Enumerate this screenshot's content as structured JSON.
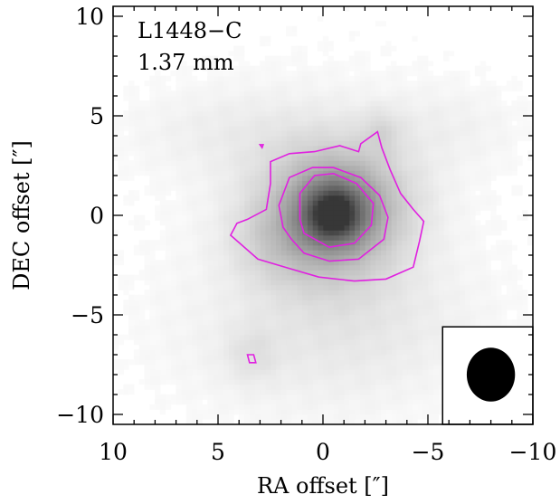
{
  "chart_data": {
    "type": "heatmap",
    "annotations": {
      "source": "L1448−C",
      "wavelength": "1.37 mm"
    },
    "xlabel": "RA offset [″]",
    "ylabel": "DEC offset [″]",
    "xlim": [
      10,
      -10
    ],
    "ylim": [
      -10.5,
      10.5
    ],
    "x_ticks": [
      10,
      5,
      0,
      -5,
      -10
    ],
    "x_tick_labels": [
      "10",
      "5",
      "0",
      "−5",
      "−10"
    ],
    "y_ticks": [
      10,
      5,
      0,
      -5,
      -10
    ],
    "y_tick_labels": [
      "10",
      "5",
      "0",
      "−5",
      "−10"
    ],
    "grid": false,
    "colormap": "grayscale (white = low, dark gray = high)",
    "source_peak": {
      "x": -0.4,
      "y": 0.1
    },
    "contour_color": "#e020e0",
    "contours": [
      {
        "level": 1,
        "points": [
          [
            3.1,
            -2.2
          ],
          [
            1.5,
            -2.7
          ],
          [
            0.2,
            -3.1
          ],
          [
            -1.5,
            -3.3
          ],
          [
            -3.0,
            -3.2
          ],
          [
            -4.3,
            -2.6
          ],
          [
            -4.6,
            -1.3
          ],
          [
            -4.8,
            -0.3
          ],
          [
            -4.3,
            0.3
          ],
          [
            -3.7,
            1.1
          ],
          [
            -3.2,
            2.3
          ],
          [
            -2.8,
            3.4
          ],
          [
            -2.6,
            4.2
          ],
          [
            -1.8,
            3.6
          ],
          [
            -1.7,
            3.2
          ],
          [
            -0.8,
            3.5
          ],
          [
            0.4,
            3.2
          ],
          [
            1.6,
            3.1
          ],
          [
            2.5,
            2.7
          ],
          [
            2.5,
            1.6
          ],
          [
            2.7,
            0.3
          ],
          [
            3.6,
            -0.2
          ],
          [
            4.1,
            -0.4
          ],
          [
            4.4,
            -1.0
          ],
          [
            3.1,
            -2.2
          ]
        ]
      },
      {
        "level": 2,
        "points": [
          [
            1.5,
            -1.2
          ],
          [
            0.9,
            -1.9
          ],
          [
            -0.3,
            -2.3
          ],
          [
            -1.7,
            -2.2
          ],
          [
            -2.9,
            -1.2
          ],
          [
            -3.1,
            -0.1
          ],
          [
            -2.7,
            1.0
          ],
          [
            -1.8,
            1.9
          ],
          [
            -0.5,
            2.4
          ],
          [
            0.5,
            2.4
          ],
          [
            1.6,
            1.9
          ],
          [
            2.1,
            0.5
          ],
          [
            1.9,
            -0.6
          ],
          [
            1.5,
            -1.2
          ]
        ]
      },
      {
        "level": 3,
        "points": [
          [
            0.9,
            -0.9
          ],
          [
            -0.3,
            -1.6
          ],
          [
            -1.5,
            -1.4
          ],
          [
            -2.3,
            -0.5
          ],
          [
            -2.4,
            0.6
          ],
          [
            -1.6,
            1.6
          ],
          [
            -0.5,
            2.1
          ],
          [
            0.4,
            2.0
          ],
          [
            1.1,
            1.1
          ],
          [
            1.1,
            -0.2
          ],
          [
            0.9,
            -0.9
          ]
        ]
      },
      {
        "level": 1,
        "points": [
          [
            3.6,
            -7.0
          ],
          [
            3.3,
            -7.0
          ],
          [
            3.2,
            -7.4
          ],
          [
            3.5,
            -7.4
          ],
          [
            3.6,
            -7.0
          ]
        ]
      },
      {
        "level": 1,
        "points": [
          [
            3.0,
            3.55
          ],
          [
            2.85,
            3.55
          ],
          [
            2.9,
            3.4
          ],
          [
            3.0,
            3.55
          ]
        ]
      }
    ],
    "beam": {
      "center": [
        -8.0,
        -8.0
      ],
      "major_axis": 2.7,
      "minor_axis": 2.3
    },
    "emission_components": [
      {
        "x": -0.3,
        "y": 0.1,
        "sx": 2.4,
        "sy": 2.4,
        "amp": 0.42
      },
      {
        "x": -0.5,
        "y": 0.1,
        "sx": 1.2,
        "sy": 1.2,
        "amp": 0.48
      },
      {
        "x": -0.5,
        "y": 0.1,
        "sx": 0.55,
        "sy": 0.6,
        "amp": 0.3
      },
      {
        "x": -2.0,
        "y": 0.8,
        "sx": 2.0,
        "sy": 1.6,
        "amp": 0.08
      },
      {
        "x": -2.8,
        "y": 4.2,
        "sx": 0.7,
        "sy": 0.8,
        "amp": 0.1
      },
      {
        "x": 2.3,
        "y": -1.4,
        "sx": 1.6,
        "sy": 1.4,
        "amp": 0.09
      },
      {
        "x": 4.5,
        "y": 4.3,
        "sx": 3.5,
        "sy": 1.6,
        "amp": 0.06
      },
      {
        "x": 1.5,
        "y": -6.5,
        "sx": 5.0,
        "sy": 3.0,
        "amp": 0.05
      },
      {
        "x": -2.5,
        "y": -5.5,
        "sx": 4.0,
        "sy": 2.5,
        "amp": 0.05
      },
      {
        "x": 3.4,
        "y": -7.0,
        "sx": 0.9,
        "sy": 1.0,
        "amp": 0.08
      },
      {
        "x": -6.0,
        "y": 4.5,
        "sx": 2.5,
        "sy": 1.5,
        "amp": 0.05
      },
      {
        "x": 0.0,
        "y": 0.0,
        "sx": 7.0,
        "sy": 7.0,
        "amp": 0.04
      }
    ]
  }
}
